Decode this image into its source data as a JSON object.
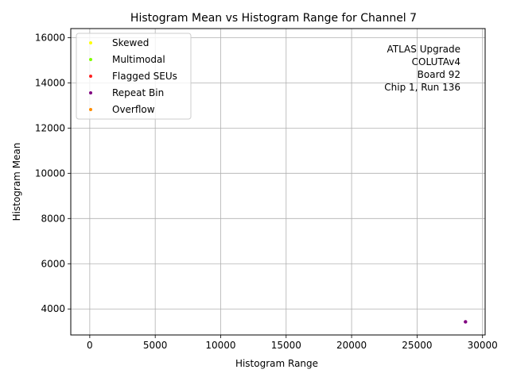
{
  "chart_data": {
    "type": "scatter",
    "title": "Histogram Mean vs Histogram Range for Channel 7",
    "xlabel": "Histogram Range",
    "ylabel": "Histogram Mean",
    "xlim": [
      -1450,
      30200
    ],
    "ylim": [
      2850,
      16400
    ],
    "x_ticks": [
      0,
      5000,
      10000,
      15000,
      20000,
      25000,
      30000
    ],
    "y_ticks": [
      4000,
      6000,
      8000,
      10000,
      12000,
      14000,
      16000
    ],
    "grid": true,
    "legend_position": "top-left",
    "annotation": [
      "ATLAS Upgrade",
      "COLUTAv4",
      "Board 92",
      "Chip 1, Run 136"
    ],
    "series": [
      {
        "name": "Skewed",
        "color": "#ffff00",
        "points": []
      },
      {
        "name": "Multimodal",
        "color": "#7fff00",
        "points": []
      },
      {
        "name": "Flagged SEUs",
        "color": "#ff2020",
        "points": []
      },
      {
        "name": "Repeat Bin",
        "color": "#800080",
        "points": [
          [
            28700,
            3430
          ]
        ]
      },
      {
        "name": "Overflow",
        "color": "#ff8c00",
        "points": []
      }
    ]
  }
}
